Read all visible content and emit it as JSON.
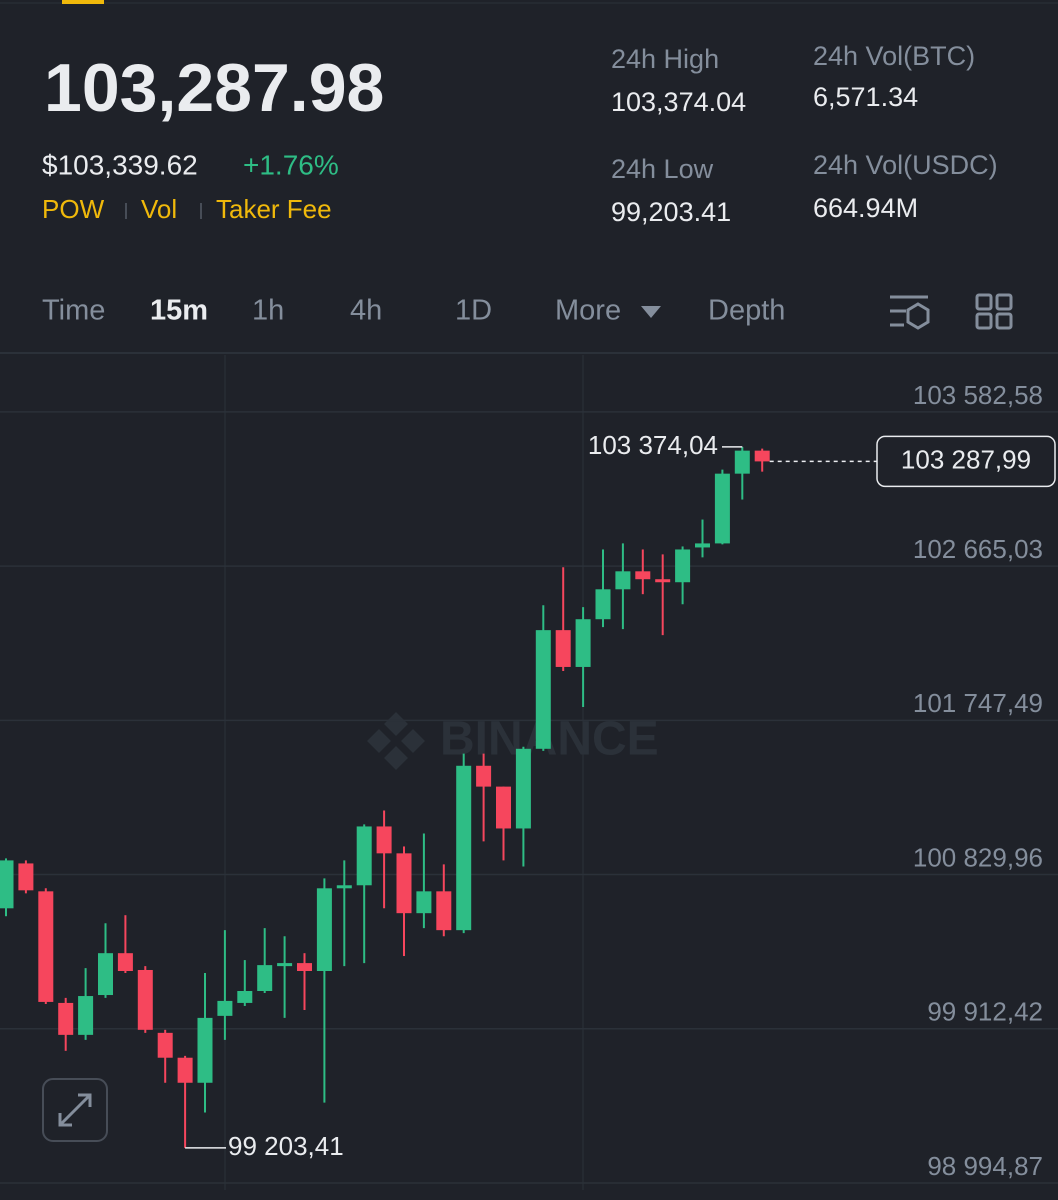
{
  "header": {
    "price": "103,287.98",
    "fiat_price": "$103,339.62",
    "change": "+1.76%",
    "tags": [
      "POW",
      "Vol",
      "Taker Fee"
    ],
    "stats": [
      {
        "label": "24h High",
        "value": "103,374.04"
      },
      {
        "label": "24h Vol(BTC)",
        "value": "6,571.34"
      },
      {
        "label": "24h Low",
        "value": "99,203.41"
      },
      {
        "label": "24h Vol(USDC)",
        "value": "664.94M"
      }
    ]
  },
  "tabs": [
    "Time",
    "15m",
    "1h",
    "4h",
    "1D",
    "More",
    "Depth"
  ],
  "chart_data": {
    "type": "candlestick",
    "watermark": "BINANCE",
    "up_color": "#2ebd85",
    "down_color": "#f6465d",
    "grid": true,
    "open": [
      100629,
      100896,
      100730,
      100066,
      99876,
      100113,
      100362,
      100262,
      99888,
      99740,
      99591,
      99989,
      100066,
      100137,
      100285,
      100303,
      100256,
      100748,
      100766,
      101116,
      100956,
      100600,
      100730,
      100499,
      101477,
      101353,
      101104,
      101578,
      102284,
      102065,
      102349,
      102527,
      102634,
      102587,
      102569,
      102776,
      102800,
      103215,
      103352
    ],
    "high": [
      100926,
      100914,
      100748,
      100096,
      100273,
      100540,
      100588,
      100285,
      99906,
      99751,
      100244,
      100499,
      100321,
      100511,
      100463,
      100362,
      100807,
      100914,
      101128,
      101211,
      100997,
      101074,
      100890,
      101549,
      101549,
      101353,
      101590,
      102432,
      102658,
      102421,
      102764,
      102800,
      102764,
      102735,
      102782,
      102942,
      103239,
      103374.04,
      103364
    ],
    "low": [
      100582,
      100718,
      100060,
      99781,
      99846,
      100096,
      100244,
      99888,
      99591,
      99203.41,
      99414,
      99846,
      100048,
      100125,
      99977,
      100024,
      99473,
      100285,
      100303,
      100629,
      100345,
      100511,
      100463,
      100481,
      101027,
      100914,
      100878,
      101566,
      102041,
      101827,
      102302,
      102290,
      102498,
      102254,
      102438,
      102717,
      102794,
      103061,
      103227
    ],
    "close": [
      100914,
      100736,
      100072,
      99876,
      100107,
      100362,
      100256,
      99906,
      99740,
      99591,
      99977,
      100078,
      100137,
      100291,
      100303,
      100256,
      100748,
      100766,
      101116,
      100956,
      100600,
      100730,
      100499,
      101477,
      101353,
      101104,
      101578,
      102284,
      102065,
      102349,
      102527,
      102634,
      102587,
      102569,
      102764,
      102800,
      103215,
      103352,
      103287.99
    ],
    "ylim": [
      98953,
      103921
    ],
    "yticks": [
      {
        "value": 98994.87,
        "label": "98 994,87"
      },
      {
        "value": 99912.42,
        "label": "99 912,42"
      },
      {
        "value": 100829.96,
        "label": "100 829,96"
      },
      {
        "value": 101747.49,
        "label": "101 747,49"
      },
      {
        "value": 102665.03,
        "label": "102 665,03"
      },
      {
        "value": 103582.58,
        "label": "103 582,58"
      }
    ],
    "high_marker": {
      "value": 103374.04,
      "label": "103 374,04"
    },
    "low_marker": {
      "value": 99203.41,
      "label": "99 203,41"
    },
    "last_price": {
      "value": 103287.99,
      "label": "103 287,99"
    }
  }
}
